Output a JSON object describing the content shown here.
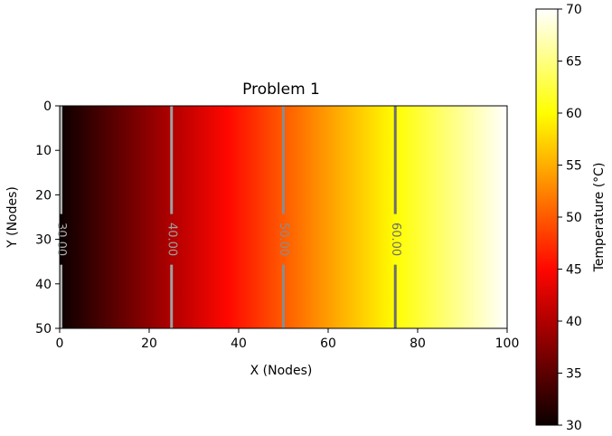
{
  "chart_data": {
    "type": "heatmap",
    "title": "Problem 1",
    "xlabel": "X (Nodes)",
    "ylabel": "Y (Nodes)",
    "xlim": [
      0,
      100
    ],
    "ylim": [
      50,
      0
    ],
    "x_ticks": [
      0,
      20,
      40,
      60,
      80,
      100
    ],
    "y_ticks": [
      0,
      10,
      20,
      30,
      40,
      50
    ],
    "colormap": "hot",
    "field": {
      "description_of_values": "Temperature varies linearly along X, constant along Y",
      "x_nodes": [
        0,
        100
      ],
      "temperature_at_x": [
        30,
        70
      ]
    },
    "contours": [
      {
        "level": 30,
        "label": "30.00",
        "x": 0,
        "color": "#b0b0b0"
      },
      {
        "level": 40,
        "label": "40.00",
        "x": 25,
        "color": "#a0a0a0"
      },
      {
        "level": 50,
        "label": "50.00",
        "x": 50,
        "color": "#8c8c8c"
      },
      {
        "level": 60,
        "label": "60.00",
        "x": 75,
        "color": "#6e6e6e"
      }
    ],
    "colorbar": {
      "label": "Temperature (°C)",
      "min": 30,
      "max": 70,
      "ticks": [
        30,
        35,
        40,
        45,
        50,
        55,
        60,
        65,
        70
      ]
    }
  }
}
